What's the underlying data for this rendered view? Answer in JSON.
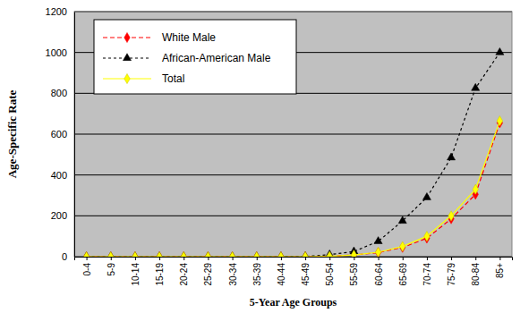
{
  "chart_data": {
    "type": "line",
    "x_label": "5-Year Age Groups",
    "y_label": "Age-Specific Rate",
    "categories": [
      "0-4",
      "5-9",
      "10-14",
      "15-19",
      "20-24",
      "25-29",
      "30-34",
      "35-39",
      "40-44",
      "45-49",
      "50-54",
      "55-59",
      "60-64",
      "65-69",
      "70-74",
      "75-79",
      "80-84",
      "85+"
    ],
    "series": [
      {
        "name": "White Male",
        "color": "#ff0000",
        "marker": "diamond",
        "line_style": "dashed",
        "values": [
          0,
          0,
          0,
          0,
          0,
          0,
          0,
          0,
          0,
          0,
          2,
          8,
          20,
          45,
          90,
          185,
          305,
          655
        ]
      },
      {
        "name": "African-American Male",
        "color": "#000000",
        "marker": "triangle",
        "line_style": "dotted",
        "values": [
          0,
          0,
          0,
          0,
          0,
          0,
          0,
          0,
          0,
          1,
          10,
          25,
          75,
          175,
          290,
          485,
          825,
          1000
        ]
      },
      {
        "name": "Total",
        "color": "#ffff00",
        "marker": "diamond",
        "line_style": "solid",
        "values": [
          0,
          0,
          0,
          0,
          0,
          0,
          0,
          0,
          0,
          0,
          2,
          8,
          22,
          50,
          100,
          200,
          330,
          665
        ]
      }
    ],
    "ylim": [
      0,
      1200
    ],
    "yticks": [
      0,
      200,
      400,
      600,
      800,
      1000,
      1200
    ],
    "grid": true,
    "legend": "upper left"
  }
}
